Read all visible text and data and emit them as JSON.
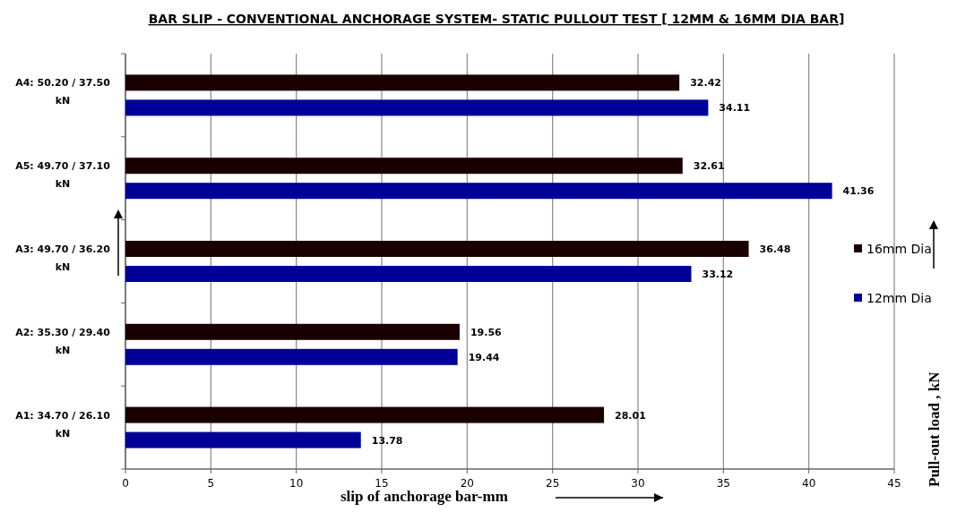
{
  "chart_data": {
    "type": "bar",
    "orientation": "horizontal",
    "title": "BAR  SLIP -  CONVENTIONAL ANCHORAGE SYSTEM- STATIC  PULLOUT TEST  [ 12MM & 16MM DIA BAR]",
    "xlabel": "slip of anchorage bar-mm",
    "ylabel": "Pull-out load , kN",
    "categories": [
      "A4: 50.20 / 37.50 kN",
      "A5: 49.70 / 37.10 kN",
      "A3: 49.70 / 36.20 kN",
      "A2: 35.30 / 29.40 kN",
      "A1: 34.70 / 26.10 kN"
    ],
    "series": [
      {
        "name": "16mm Dia",
        "color": "#1a0000",
        "values": [
          32.42,
          32.61,
          36.48,
          19.56,
          28.01
        ]
      },
      {
        "name": "12mm Dia",
        "color": "#000099",
        "values": [
          34.11,
          41.36,
          33.12,
          19.44,
          13.78
        ]
      }
    ],
    "xlim": [
      0,
      45
    ],
    "xticks": [
      0,
      5,
      10,
      15,
      20,
      25,
      30,
      35,
      40,
      45
    ],
    "grid": "x",
    "legend": "right",
    "data_labels": true
  }
}
